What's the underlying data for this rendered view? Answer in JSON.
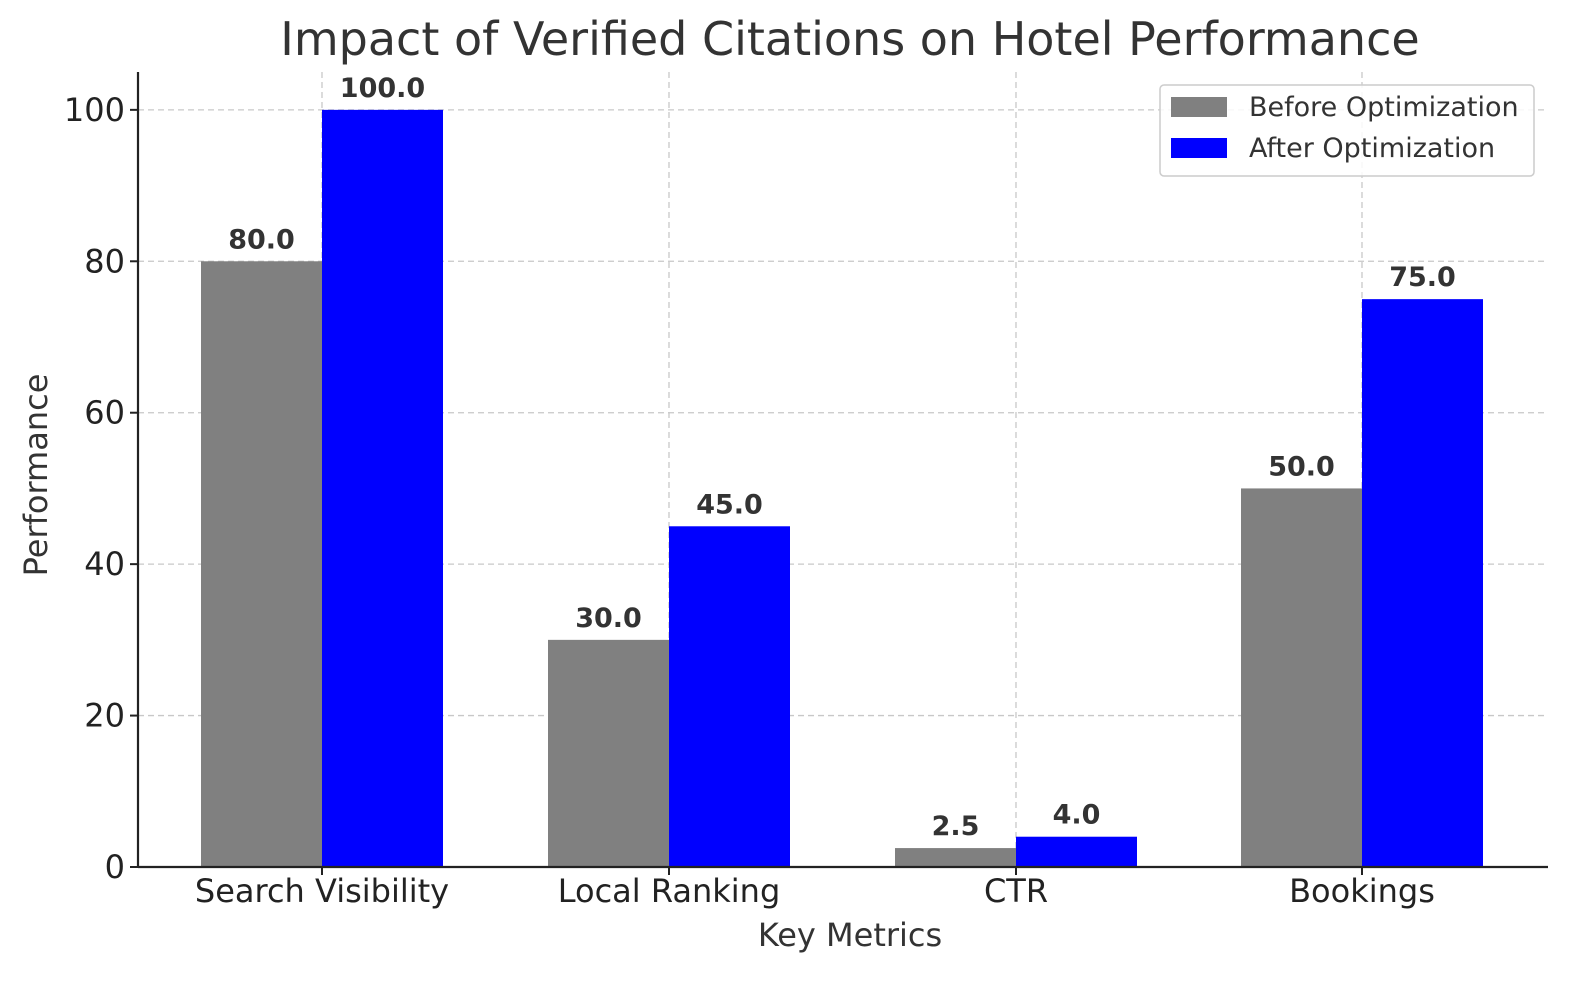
{
  "chart_data": {
    "type": "bar",
    "title": "Impact of Verified Citations on Hotel Performance",
    "xlabel": "Key Metrics",
    "ylabel": "Performance",
    "categories": [
      "Search Visibility",
      "Local Ranking",
      "CTR",
      "Bookings"
    ],
    "series": [
      {
        "name": "Before Optimization",
        "values": [
          80.0,
          30.0,
          2.5,
          50.0
        ],
        "labels": [
          "80.0",
          "30.0",
          "2.5",
          "50.0"
        ],
        "color": "#808080"
      },
      {
        "name": "After Optimization",
        "values": [
          100.0,
          45.0,
          4.0,
          75.0
        ],
        "labels": [
          "100.0",
          "45.0",
          "4.0",
          "75.0"
        ],
        "color": "#0000ff"
      }
    ],
    "ylim": [
      0,
      105
    ],
    "yticks": [
      0,
      20,
      40,
      60,
      80,
      100
    ],
    "ytick_labels": [
      "0",
      "20",
      "40",
      "60",
      "80",
      "100"
    ],
    "grid": true,
    "legend_position": "top-right"
  }
}
